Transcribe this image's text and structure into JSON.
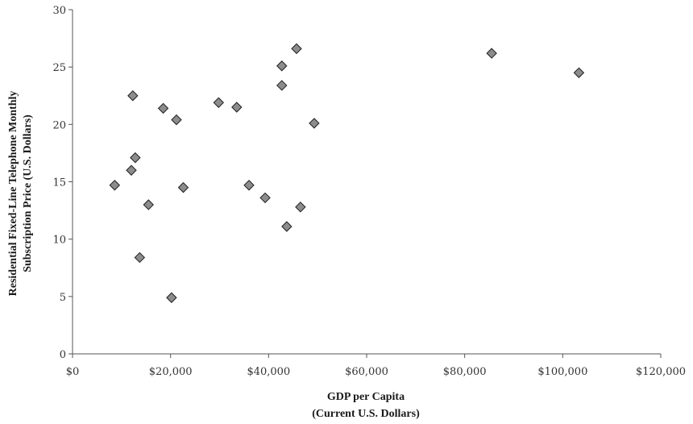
{
  "chart_data": {
    "type": "scatter",
    "xlabel": [
      "GDP per Capita",
      "(Current U.S. Dollars)"
    ],
    "ylabel": [
      "Residential Fixed-Line Telephone Monthly",
      "Subscription Price (U.S. Dollars)"
    ],
    "xlim": [
      0,
      120000
    ],
    "ylim": [
      0,
      30
    ],
    "x_ticks": [
      0,
      20000,
      40000,
      60000,
      80000,
      100000,
      120000
    ],
    "x_tick_labels": [
      "$0",
      "$20,000",
      "$40,000",
      "$60,000",
      "$80,000",
      "$100,000",
      "$120,000"
    ],
    "y_ticks": [
      0,
      5,
      10,
      15,
      20,
      25,
      30
    ],
    "y_tick_labels": [
      "0",
      "5",
      "10",
      "15",
      "20",
      "25",
      "30"
    ],
    "grid": false,
    "marker": "diamond",
    "marker_color": "#8c8c8c",
    "points": [
      {
        "x": 8600,
        "y": 14.7
      },
      {
        "x": 12000,
        "y": 16.0
      },
      {
        "x": 12300,
        "y": 22.5
      },
      {
        "x": 12800,
        "y": 17.1
      },
      {
        "x": 13700,
        "y": 8.4
      },
      {
        "x": 15500,
        "y": 13.0
      },
      {
        "x": 18500,
        "y": 21.4
      },
      {
        "x": 20200,
        "y": 4.9
      },
      {
        "x": 21200,
        "y": 20.4
      },
      {
        "x": 22600,
        "y": 14.5
      },
      {
        "x": 29800,
        "y": 21.9
      },
      {
        "x": 33500,
        "y": 21.5
      },
      {
        "x": 36000,
        "y": 14.7
      },
      {
        "x": 39300,
        "y": 13.6
      },
      {
        "x": 42700,
        "y": 25.1
      },
      {
        "x": 42700,
        "y": 23.4
      },
      {
        "x": 43700,
        "y": 11.1
      },
      {
        "x": 45700,
        "y": 26.6
      },
      {
        "x": 46500,
        "y": 12.8
      },
      {
        "x": 49300,
        "y": 20.1
      },
      {
        "x": 85500,
        "y": 26.2
      },
      {
        "x": 103300,
        "y": 24.5
      }
    ]
  }
}
